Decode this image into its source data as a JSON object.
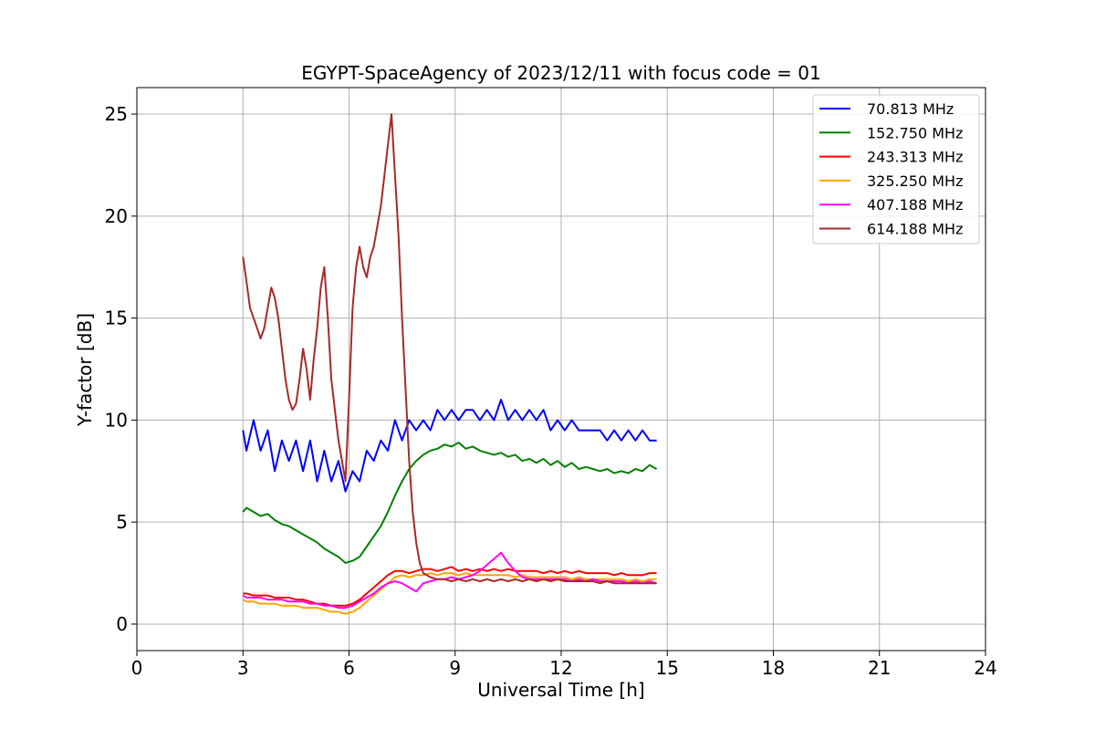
{
  "chart_data": {
    "type": "line",
    "title": "EGYPT-SpaceAgency of 2023/12/11 with focus code = 01",
    "xlabel": "Universal Time [h]",
    "ylabel": "Y-factor [dB]",
    "xlim": [
      0,
      24
    ],
    "ylim": [
      -1.3,
      26.3
    ],
    "xticks": [
      0,
      3,
      6,
      9,
      12,
      15,
      18,
      21,
      24
    ],
    "yticks": [
      0,
      5,
      10,
      15,
      20,
      25
    ],
    "grid": true,
    "legend_position": "top-right",
    "series": [
      {
        "name": "  70.813 MHz",
        "color": "#0000ff",
        "x": [
          3.0,
          3.1,
          3.3,
          3.5,
          3.7,
          3.9,
          4.1,
          4.3,
          4.5,
          4.7,
          4.9,
          5.1,
          5.3,
          5.5,
          5.7,
          5.9,
          6.1,
          6.3,
          6.5,
          6.7,
          6.9,
          7.1,
          7.3,
          7.5,
          7.7,
          7.9,
          8.1,
          8.3,
          8.5,
          8.7,
          8.9,
          9.1,
          9.3,
          9.5,
          9.7,
          9.9,
          10.1,
          10.3,
          10.5,
          10.7,
          10.9,
          11.1,
          11.3,
          11.5,
          11.7,
          11.9,
          12.1,
          12.3,
          12.5,
          12.7,
          12.9,
          13.1,
          13.3,
          13.5,
          13.7,
          13.9,
          14.1,
          14.3,
          14.5,
          14.7
        ],
        "y": [
          9.5,
          8.5,
          10.0,
          8.5,
          9.5,
          7.5,
          9.0,
          8.0,
          9.0,
          7.5,
          9.0,
          7.0,
          8.5,
          7.0,
          8.0,
          6.5,
          7.5,
          7.0,
          8.5,
          8.0,
          9.0,
          8.5,
          10.0,
          9.0,
          10.0,
          9.5,
          10.0,
          9.5,
          10.5,
          10.0,
          10.5,
          10.0,
          10.5,
          10.5,
          10.0,
          10.5,
          10.0,
          11.0,
          10.0,
          10.5,
          10.0,
          10.5,
          10.0,
          10.5,
          9.5,
          10.0,
          9.5,
          10.0,
          9.5,
          9.5,
          9.5,
          9.5,
          9.0,
          9.5,
          9.0,
          9.5,
          9.0,
          9.5,
          9.0,
          9.0
        ]
      },
      {
        "name": "152.750 MHz",
        "color": "#008000",
        "x": [
          3.0,
          3.1,
          3.3,
          3.5,
          3.7,
          3.9,
          4.1,
          4.3,
          4.5,
          4.7,
          4.9,
          5.1,
          5.3,
          5.5,
          5.7,
          5.9,
          6.1,
          6.3,
          6.5,
          6.7,
          6.9,
          7.1,
          7.3,
          7.5,
          7.7,
          7.9,
          8.1,
          8.3,
          8.5,
          8.7,
          8.9,
          9.1,
          9.3,
          9.5,
          9.7,
          9.9,
          10.1,
          10.3,
          10.5,
          10.7,
          10.9,
          11.1,
          11.3,
          11.5,
          11.7,
          11.9,
          12.1,
          12.3,
          12.5,
          12.7,
          12.9,
          13.1,
          13.3,
          13.5,
          13.7,
          13.9,
          14.1,
          14.3,
          14.5,
          14.7
        ],
        "y": [
          5.5,
          5.7,
          5.5,
          5.3,
          5.4,
          5.1,
          4.9,
          4.8,
          4.6,
          4.4,
          4.2,
          4.0,
          3.7,
          3.5,
          3.3,
          3.0,
          3.1,
          3.3,
          3.8,
          4.3,
          4.8,
          5.5,
          6.3,
          7.0,
          7.6,
          8.0,
          8.3,
          8.5,
          8.6,
          8.8,
          8.7,
          8.9,
          8.6,
          8.7,
          8.5,
          8.4,
          8.3,
          8.4,
          8.2,
          8.3,
          8.0,
          8.1,
          7.9,
          8.1,
          7.8,
          8.0,
          7.7,
          7.9,
          7.6,
          7.7,
          7.6,
          7.5,
          7.6,
          7.4,
          7.5,
          7.4,
          7.6,
          7.5,
          7.8,
          7.6
        ]
      },
      {
        "name": "243.313 MHz",
        "color": "#ff0000",
        "x": [
          3.0,
          3.1,
          3.3,
          3.5,
          3.7,
          3.9,
          4.1,
          4.3,
          4.5,
          4.7,
          4.9,
          5.1,
          5.3,
          5.5,
          5.7,
          5.9,
          6.1,
          6.3,
          6.5,
          6.7,
          6.9,
          7.1,
          7.3,
          7.5,
          7.7,
          7.9,
          8.1,
          8.3,
          8.5,
          8.7,
          8.9,
          9.1,
          9.3,
          9.5,
          9.7,
          9.9,
          10.1,
          10.3,
          10.5,
          10.7,
          10.9,
          11.1,
          11.3,
          11.5,
          11.7,
          11.9,
          12.1,
          12.3,
          12.5,
          12.7,
          12.9,
          13.1,
          13.3,
          13.5,
          13.7,
          13.9,
          14.1,
          14.3,
          14.5,
          14.7
        ],
        "y": [
          1.5,
          1.5,
          1.4,
          1.4,
          1.4,
          1.3,
          1.3,
          1.3,
          1.2,
          1.2,
          1.1,
          1.0,
          1.0,
          0.9,
          0.9,
          0.9,
          1.0,
          1.2,
          1.5,
          1.8,
          2.1,
          2.4,
          2.6,
          2.6,
          2.5,
          2.6,
          2.7,
          2.7,
          2.6,
          2.7,
          2.8,
          2.6,
          2.7,
          2.6,
          2.7,
          2.6,
          2.7,
          2.6,
          2.7,
          2.6,
          2.6,
          2.6,
          2.6,
          2.5,
          2.6,
          2.5,
          2.6,
          2.5,
          2.6,
          2.5,
          2.5,
          2.5,
          2.5,
          2.4,
          2.5,
          2.4,
          2.4,
          2.4,
          2.5,
          2.5
        ]
      },
      {
        "name": "325.250 MHz",
        "color": "#ffa500",
        "x": [
          3.0,
          3.1,
          3.3,
          3.5,
          3.7,
          3.9,
          4.1,
          4.3,
          4.5,
          4.7,
          4.9,
          5.1,
          5.3,
          5.5,
          5.7,
          5.9,
          6.1,
          6.3,
          6.5,
          6.7,
          6.9,
          7.1,
          7.3,
          7.5,
          7.7,
          7.9,
          8.1,
          8.3,
          8.5,
          8.7,
          8.9,
          9.1,
          9.3,
          9.5,
          9.7,
          9.9,
          10.1,
          10.3,
          10.5,
          10.7,
          10.9,
          11.1,
          11.3,
          11.5,
          11.7,
          11.9,
          12.1,
          12.3,
          12.5,
          12.7,
          12.9,
          13.1,
          13.3,
          13.5,
          13.7,
          13.9,
          14.1,
          14.3,
          14.5,
          14.7
        ],
        "y": [
          1.2,
          1.1,
          1.1,
          1.0,
          1.0,
          1.0,
          0.9,
          0.9,
          0.9,
          0.8,
          0.8,
          0.8,
          0.7,
          0.6,
          0.6,
          0.5,
          0.6,
          0.8,
          1.1,
          1.4,
          1.7,
          2.0,
          2.3,
          2.4,
          2.3,
          2.4,
          2.4,
          2.5,
          2.4,
          2.5,
          2.5,
          2.4,
          2.5,
          2.4,
          2.4,
          2.4,
          2.4,
          2.4,
          2.4,
          2.3,
          2.4,
          2.3,
          2.3,
          2.3,
          2.3,
          2.3,
          2.3,
          2.2,
          2.3,
          2.2,
          2.2,
          2.2,
          2.2,
          2.2,
          2.2,
          2.1,
          2.2,
          2.1,
          2.2,
          2.2
        ]
      },
      {
        "name": "407.188 MHz",
        "color": "#ff00ff",
        "x": [
          3.0,
          3.1,
          3.3,
          3.5,
          3.7,
          3.9,
          4.1,
          4.3,
          4.5,
          4.7,
          4.9,
          5.1,
          5.3,
          5.5,
          5.7,
          5.9,
          6.1,
          6.3,
          6.5,
          6.7,
          6.9,
          7.1,
          7.3,
          7.5,
          7.7,
          7.9,
          8.1,
          8.3,
          8.5,
          8.7,
          8.9,
          9.1,
          9.3,
          9.5,
          9.7,
          9.9,
          10.1,
          10.3,
          10.5,
          10.7,
          10.9,
          11.1,
          11.3,
          11.5,
          11.7,
          11.9,
          12.1,
          12.3,
          12.5,
          12.7,
          12.9,
          13.1,
          13.3,
          13.5,
          13.7,
          13.9,
          14.1,
          14.3,
          14.5,
          14.7
        ],
        "y": [
          1.4,
          1.3,
          1.3,
          1.3,
          1.2,
          1.2,
          1.2,
          1.1,
          1.1,
          1.1,
          1.0,
          1.0,
          0.9,
          0.9,
          0.8,
          0.8,
          0.9,
          1.1,
          1.3,
          1.5,
          1.8,
          2.0,
          2.1,
          2.0,
          1.8,
          1.6,
          2.0,
          2.1,
          2.2,
          2.2,
          2.3,
          2.2,
          2.3,
          2.4,
          2.6,
          2.9,
          3.2,
          3.5,
          3.0,
          2.6,
          2.3,
          2.2,
          2.2,
          2.2,
          2.2,
          2.2,
          2.2,
          2.1,
          2.2,
          2.1,
          2.2,
          2.1,
          2.1,
          2.1,
          2.1,
          2.0,
          2.1,
          2.0,
          2.1,
          2.0
        ]
      },
      {
        "name": "614.188 MHz",
        "color": "#a52a2a",
        "x": [
          3.0,
          3.1,
          3.2,
          3.3,
          3.4,
          3.5,
          3.6,
          3.7,
          3.8,
          3.9,
          4.0,
          4.1,
          4.2,
          4.3,
          4.4,
          4.5,
          4.6,
          4.7,
          4.8,
          4.9,
          5.0,
          5.1,
          5.2,
          5.3,
          5.4,
          5.5,
          5.6,
          5.7,
          5.8,
          5.9,
          6.0,
          6.1,
          6.2,
          6.3,
          6.4,
          6.5,
          6.6,
          6.7,
          6.8,
          6.9,
          7.0,
          7.1,
          7.2,
          7.3,
          7.4,
          7.5,
          7.6,
          7.7,
          7.8,
          7.9,
          8.0,
          8.1,
          8.2,
          8.3,
          8.5,
          8.7,
          8.9,
          9.1,
          9.3,
          9.5,
          9.7,
          9.9,
          10.1,
          10.3,
          10.5,
          10.7,
          10.9,
          11.1,
          11.3,
          11.5,
          11.7,
          11.9,
          12.1,
          12.3,
          12.5,
          12.7,
          12.9,
          13.1,
          13.3,
          13.5,
          13.7,
          13.9,
          14.1,
          14.3,
          14.5,
          14.7
        ],
        "y": [
          18.0,
          16.8,
          15.5,
          15.0,
          14.5,
          14.0,
          14.5,
          15.5,
          16.5,
          16.0,
          15.0,
          13.5,
          12.0,
          11.0,
          10.5,
          10.8,
          12.0,
          13.5,
          12.5,
          11.0,
          13.0,
          14.5,
          16.5,
          17.5,
          15.0,
          12.0,
          10.5,
          9.0,
          8.0,
          7.0,
          11.0,
          15.5,
          17.5,
          18.5,
          17.5,
          17.0,
          18.0,
          18.5,
          19.5,
          20.5,
          22.0,
          23.5,
          25.0,
          22.0,
          19.0,
          15.0,
          11.5,
          8.0,
          5.5,
          4.0,
          3.0,
          2.5,
          2.4,
          2.3,
          2.2,
          2.2,
          2.1,
          2.2,
          2.1,
          2.2,
          2.1,
          2.2,
          2.1,
          2.2,
          2.1,
          2.2,
          2.1,
          2.2,
          2.1,
          2.2,
          2.1,
          2.2,
          2.1,
          2.1,
          2.1,
          2.1,
          2.1,
          2.0,
          2.1,
          2.0,
          2.0,
          2.0,
          2.0,
          2.0,
          2.0,
          2.0
        ]
      }
    ]
  }
}
